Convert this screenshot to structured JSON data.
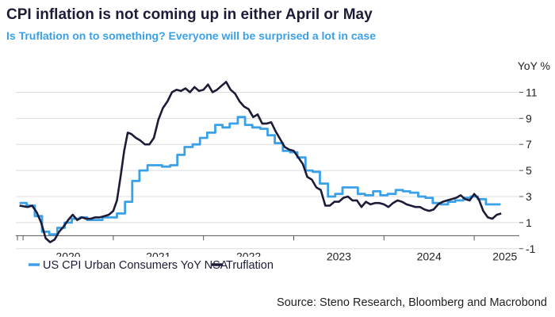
{
  "chart_data": {
    "type": "line",
    "title": "CPI inflation is not coming up in either April or May",
    "subtitle": "Is Truflation on to something? Everyone will be surprised a lot in case",
    "ylabel": "YoY %",
    "source": "Source: Steno Research, Bloomberg and Macrobond",
    "ylim": [
      -1.5,
      12
    ],
    "yticks": [
      -1,
      1,
      3,
      5,
      7,
      9,
      11
    ],
    "xlim": [
      2019.92,
      2025.5
    ],
    "xtick_labels": [
      "2020",
      "2021",
      "2022",
      "2023",
      "2024",
      "2025"
    ],
    "grid": "horizontal",
    "legend_position": "bottom-left",
    "colors": {
      "cpi": "#3aa0e8",
      "truflation": "#1c1c38"
    },
    "series": [
      {
        "name": "US CPI Urban Consumers YoY NSA",
        "key": "cpi",
        "style": "step",
        "x": [
          2019.96,
          2020.04,
          2020.13,
          2020.21,
          2020.29,
          2020.38,
          2020.46,
          2020.54,
          2020.63,
          2020.71,
          2020.79,
          2020.88,
          2020.96,
          2021.04,
          2021.13,
          2021.21,
          2021.29,
          2021.38,
          2021.46,
          2021.54,
          2021.63,
          2021.71,
          2021.79,
          2021.88,
          2021.96,
          2022.04,
          2022.13,
          2022.21,
          2022.29,
          2022.38,
          2022.46,
          2022.54,
          2022.63,
          2022.71,
          2022.79,
          2022.88,
          2022.96,
          2023.04,
          2023.13,
          2023.21,
          2023.29,
          2023.38,
          2023.46,
          2023.54,
          2023.63,
          2023.71,
          2023.79,
          2023.88,
          2023.96,
          2024.04,
          2024.13,
          2024.21,
          2024.29,
          2024.38,
          2024.46,
          2024.54,
          2024.63,
          2024.71,
          2024.79,
          2024.88,
          2024.96,
          2025.04,
          2025.13,
          2025.21
        ],
        "values": [
          2.5,
          2.3,
          1.5,
          0.3,
          0.1,
          0.6,
          1.0,
          1.3,
          1.4,
          1.2,
          1.2,
          1.4,
          1.4,
          1.7,
          2.6,
          4.2,
          5.0,
          5.4,
          5.4,
          5.3,
          5.4,
          6.2,
          6.8,
          7.0,
          7.5,
          7.9,
          8.5,
          8.3,
          8.6,
          9.1,
          8.5,
          8.3,
          8.2,
          7.7,
          7.1,
          6.5,
          6.4,
          6.0,
          5.0,
          4.9,
          4.0,
          3.0,
          3.2,
          3.7,
          3.7,
          3.2,
          3.1,
          3.4,
          3.1,
          3.2,
          3.5,
          3.4,
          3.3,
          3.0,
          2.9,
          2.5,
          2.4,
          2.6,
          2.7,
          2.9,
          3.0,
          2.8,
          2.4,
          2.4
        ]
      },
      {
        "name": "Truflation",
        "key": "truflation",
        "style": "line",
        "x": [
          2019.96,
          2020.05,
          2020.1,
          2020.15,
          2020.2,
          2020.25,
          2020.3,
          2020.35,
          2020.4,
          2020.45,
          2020.5,
          2020.55,
          2020.6,
          2020.65,
          2020.7,
          2020.75,
          2020.8,
          2020.85,
          2020.9,
          2020.95,
          2021.0,
          2021.04,
          2021.08,
          2021.12,
          2021.16,
          2021.2,
          2021.25,
          2021.3,
          2021.35,
          2021.4,
          2021.45,
          2021.5,
          2021.55,
          2021.6,
          2021.65,
          2021.7,
          2021.75,
          2021.8,
          2021.85,
          2021.9,
          2021.95,
          2022.0,
          2022.05,
          2022.1,
          2022.15,
          2022.2,
          2022.25,
          2022.3,
          2022.35,
          2022.4,
          2022.45,
          2022.5,
          2022.55,
          2022.6,
          2022.65,
          2022.7,
          2022.75,
          2022.8,
          2022.85,
          2022.9,
          2022.95,
          2023.0,
          2023.05,
          2023.1,
          2023.15,
          2023.2,
          2023.25,
          2023.3,
          2023.35,
          2023.4,
          2023.45,
          2023.5,
          2023.55,
          2023.6,
          2023.65,
          2023.7,
          2023.75,
          2023.8,
          2023.85,
          2023.9,
          2023.95,
          2024.0,
          2024.05,
          2024.1,
          2024.15,
          2024.2,
          2024.25,
          2024.3,
          2024.35,
          2024.4,
          2024.45,
          2024.5,
          2024.55,
          2024.6,
          2024.65,
          2024.7,
          2024.75,
          2024.8,
          2024.85,
          2024.9,
          2024.95,
          2025.0,
          2025.05,
          2025.1,
          2025.15,
          2025.2,
          2025.25,
          2025.3
        ],
        "values": [
          2.3,
          2.2,
          2.3,
          1.8,
          1.0,
          -0.2,
          -0.5,
          -0.3,
          0.3,
          0.7,
          1.2,
          1.6,
          1.2,
          1.4,
          1.3,
          1.3,
          1.4,
          1.4,
          1.5,
          1.6,
          1.9,
          2.7,
          4.5,
          6.5,
          7.9,
          7.8,
          7.5,
          7.3,
          7.0,
          7.0,
          7.5,
          8.9,
          9.8,
          10.3,
          11.0,
          11.2,
          11.1,
          11.3,
          11.0,
          11.4,
          11.1,
          11.2,
          11.6,
          11.0,
          11.2,
          11.5,
          11.8,
          11.2,
          10.9,
          10.3,
          9.9,
          9.7,
          9.1,
          9.3,
          8.6,
          8.6,
          8.7,
          8.0,
          7.4,
          6.8,
          6.6,
          6.5,
          6.0,
          5.5,
          4.5,
          4.3,
          3.7,
          3.5,
          2.3,
          2.3,
          2.6,
          2.6,
          2.9,
          3.0,
          2.7,
          2.7,
          2.2,
          2.6,
          2.4,
          2.5,
          2.5,
          2.4,
          2.2,
          2.5,
          2.7,
          2.6,
          2.4,
          2.3,
          2.2,
          2.2,
          2.0,
          1.9,
          2.0,
          2.4,
          2.6,
          2.7,
          2.8,
          2.9,
          3.1,
          2.8,
          2.7,
          3.2,
          2.8,
          1.9,
          1.4,
          1.3,
          1.6,
          1.7
        ]
      }
    ]
  }
}
